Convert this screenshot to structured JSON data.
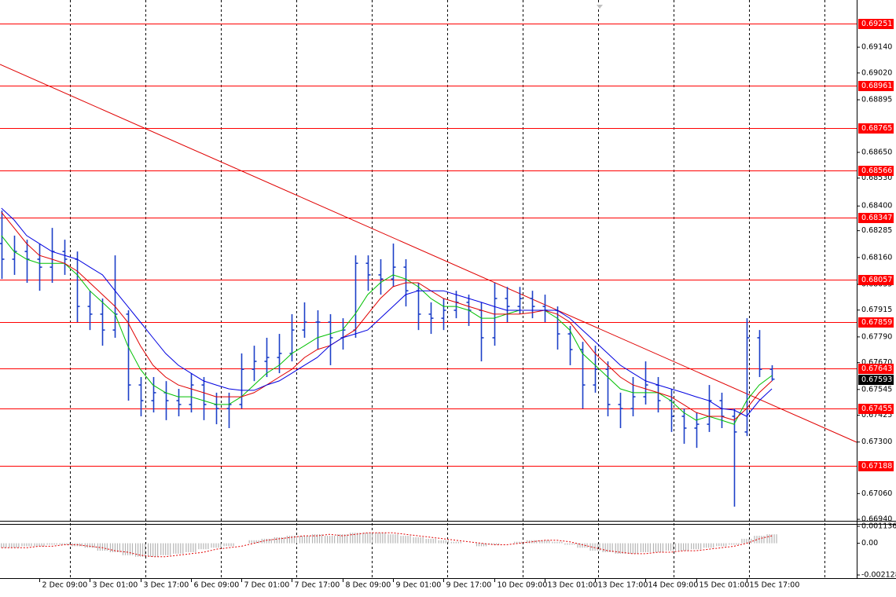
{
  "chart_data": {
    "type": "ohlc",
    "color": "#1c3fc8",
    "categories": [
      null,
      null,
      null,
      "2 Dec 09:00",
      null,
      null,
      null,
      "3 Dec 01:00",
      null,
      null,
      null,
      "3 Dec 17:00",
      null,
      null,
      null,
      "6 Dec 09:00",
      null,
      null,
      null,
      "7 Dec 01:00",
      null,
      null,
      null,
      "7 Dec 17:00",
      null,
      null,
      null,
      "8 Dec 09:00",
      null,
      null,
      null,
      "9 Dec 01:00",
      null,
      null,
      null,
      "9 Dec 17:00",
      null,
      null,
      null,
      "10 Dec 09:00",
      null,
      null,
      null,
      "13 Dec 01:00",
      null,
      null,
      null,
      "13 Dec 17:00",
      null,
      null,
      null,
      "14 Dec 09:00",
      null,
      null,
      null,
      "15 Dec 01:00",
      null,
      null,
      null,
      "15 Dec 17:00",
      null,
      null
    ],
    "open": [
      0.68225,
      0.68152,
      0.68188,
      0.68152,
      0.68115,
      0.68188,
      0.68152,
      0.67932,
      0.67896,
      0.67822,
      0.67896,
      0.67566,
      0.67493,
      0.6753,
      0.67493,
      0.67475,
      0.67566,
      0.67475,
      0.67456,
      0.67475,
      0.67639,
      0.67676,
      0.67694,
      0.67713,
      0.67822,
      0.67859,
      0.67859,
      0.67786,
      0.67822,
      0.68133,
      0.68079,
      0.6806,
      0.68115,
      0.68005,
      0.67896,
      0.67877,
      0.67914,
      0.67951,
      0.67914,
      0.67786,
      0.67969,
      0.67932,
      0.67969,
      0.67932,
      0.67914,
      0.67804,
      0.67731,
      0.67566,
      0.67639,
      0.67475,
      0.67456,
      0.67511,
      0.67566,
      0.67493,
      0.6742,
      0.67365,
      0.67383,
      0.67493,
      0.6742,
      0.67347,
      0.67786,
      0.67639
    ],
    "high": [
      0.68379,
      0.68262,
      0.68243,
      0.68225,
      0.68298,
      0.68243,
      0.68188,
      0.68005,
      0.67969,
      0.6817,
      0.67914,
      0.67603,
      0.67603,
      0.67584,
      0.67548,
      0.67621,
      0.67603,
      0.6753,
      0.6753,
      0.67713,
      0.67749,
      0.67786,
      0.67804,
      0.67896,
      0.67951,
      0.67914,
      0.67896,
      0.67877,
      0.6817,
      0.6817,
      0.68152,
      0.68225,
      0.68152,
      0.68042,
      0.67951,
      0.67969,
      0.68005,
      0.67987,
      0.67951,
      0.68042,
      0.68023,
      0.68023,
      0.68005,
      0.67987,
      0.67932,
      0.67841,
      0.67767,
      0.67749,
      0.67676,
      0.6753,
      0.67603,
      0.67676,
      0.67603,
      0.67548,
      0.67456,
      0.67438,
      0.67566,
      0.6753,
      0.67456,
      0.67877,
      0.67822,
      0.67658
    ],
    "low": [
      0.6806,
      0.68079,
      0.68042,
      0.68005,
      0.68042,
      0.68079,
      0.67859,
      0.67822,
      0.67749,
      0.67786,
      0.67493,
      0.6742,
      0.67438,
      0.67402,
      0.6742,
      0.67438,
      0.67402,
      0.67383,
      0.67365,
      0.67456,
      0.67584,
      0.67603,
      0.67621,
      0.67676,
      0.67786,
      0.67731,
      0.67658,
      0.67731,
      0.67786,
      0.68005,
      0.67987,
      0.68023,
      0.67932,
      0.67822,
      0.67804,
      0.67822,
      0.67877,
      0.67841,
      0.67676,
      0.67749,
      0.67859,
      0.67896,
      0.67877,
      0.67859,
      0.67731,
      0.67658,
      0.67456,
      0.6753,
      0.6742,
      0.67365,
      0.6742,
      0.67475,
      0.67438,
      0.67347,
      0.67292,
      0.67273,
      0.67347,
      0.67365,
      0.66999,
      0.67328,
      0.67603,
      0.67584
    ],
    "close": [
      0.68152,
      0.68188,
      0.68152,
      0.68115,
      0.68188,
      0.68152,
      0.67932,
      0.67896,
      0.67822,
      0.67896,
      0.67566,
      0.67493,
      0.6753,
      0.67493,
      0.67475,
      0.67566,
      0.67475,
      0.67456,
      0.67475,
      0.67639,
      0.67676,
      0.67694,
      0.67713,
      0.67822,
      0.67859,
      0.67859,
      0.67786,
      0.67822,
      0.68133,
      0.68079,
      0.6806,
      0.68115,
      0.68005,
      0.67896,
      0.67877,
      0.67914,
      0.67951,
      0.67914,
      0.67786,
      0.67969,
      0.67932,
      0.67969,
      0.67932,
      0.67914,
      0.67804,
      0.67731,
      0.67566,
      0.67639,
      0.67475,
      0.67456,
      0.67511,
      0.67566,
      0.67493,
      0.6742,
      0.67365,
      0.67383,
      0.67493,
      0.6742,
      0.67347,
      0.67786,
      0.67639,
      0.67593
    ],
    "moving_averages": [
      {
        "color": "#00c000",
        "values": [
          0.68262,
          0.68188,
          0.68152,
          0.68133,
          0.68133,
          0.68133,
          0.68079,
          0.68005,
          0.67951,
          0.67896,
          0.67749,
          0.67639,
          0.67566,
          0.6753,
          0.67511,
          0.67511,
          0.67493,
          0.67475,
          0.67475,
          0.67511,
          0.67566,
          0.67621,
          0.67658,
          0.67713,
          0.67749,
          0.67786,
          0.67804,
          0.67822,
          0.67896,
          0.67987,
          0.68042,
          0.68079,
          0.6806,
          0.68024,
          0.67969,
          0.67932,
          0.67932,
          0.67914,
          0.67877,
          0.67877,
          0.67896,
          0.67914,
          0.67914,
          0.67914,
          0.67877,
          0.67822,
          0.67713,
          0.67658,
          0.67603,
          0.67548,
          0.6753,
          0.6753,
          0.6753,
          0.67493,
          0.67438,
          0.67402,
          0.6742,
          0.67402,
          0.67383,
          0.67493,
          0.67566,
          0.6761
        ]
      },
      {
        "color": "#e00000",
        "values": [
          0.68371,
          0.68298,
          0.68225,
          0.6817,
          0.68152,
          0.68133,
          0.68097,
          0.68042,
          0.67987,
          0.67932,
          0.67859,
          0.67749,
          0.67658,
          0.67603,
          0.67566,
          0.67548,
          0.6753,
          0.67511,
          0.67511,
          0.67511,
          0.6753,
          0.67566,
          0.67603,
          0.67639,
          0.67694,
          0.67731,
          0.67749,
          0.67786,
          0.67822,
          0.67896,
          0.67969,
          0.68024,
          0.68042,
          0.68042,
          0.68005,
          0.67969,
          0.67951,
          0.67932,
          0.67914,
          0.67896,
          0.67896,
          0.67896,
          0.67903,
          0.67914,
          0.67896,
          0.67859,
          0.67786,
          0.67713,
          0.67658,
          0.67603,
          0.67566,
          0.67548,
          0.6753,
          0.67511,
          0.67475,
          0.67438,
          0.6742,
          0.6742,
          0.67402,
          0.67456,
          0.6753,
          0.67585
        ]
      },
      {
        "color": "#0000e0",
        "values": [
          0.6839,
          0.68335,
          0.68262,
          0.68225,
          0.68188,
          0.6817,
          0.68152,
          0.68115,
          0.68079,
          0.68005,
          0.67932,
          0.67859,
          0.67786,
          0.67713,
          0.67658,
          0.67621,
          0.67585,
          0.67566,
          0.67548,
          0.67541,
          0.67541,
          0.67566,
          0.67585,
          0.67621,
          0.67658,
          0.67694,
          0.67749,
          0.67786,
          0.67804,
          0.67822,
          0.67877,
          0.67932,
          0.67987,
          0.68005,
          0.68005,
          0.68005,
          0.67987,
          0.67969,
          0.67951,
          0.67932,
          0.67914,
          0.67914,
          0.67914,
          0.67914,
          0.67914,
          0.67877,
          0.67822,
          0.67768,
          0.67713,
          0.67658,
          0.67621,
          0.67585,
          0.67566,
          0.67548,
          0.6753,
          0.67511,
          0.67493,
          0.67456,
          0.67449,
          0.6742,
          0.67493,
          0.67548
        ]
      }
    ],
    "levels": {
      "color": "#ff0000",
      "values": [
        0.69251,
        0.68961,
        0.68765,
        0.68566,
        0.68347,
        0.68057,
        0.67859,
        0.67643,
        0.67455,
        0.67188
      ]
    },
    "last_price": 0.67593,
    "ylim": [
      0.66933,
      0.6936
    ],
    "yticks": [
      {
        "value": 0.6914,
        "label": "0.69140"
      },
      {
        "value": 0.6902,
        "label": "0.69020"
      },
      0.68895,
      {
        "value": 0.6865,
        "label": "0.68650"
      },
      {
        "value": 0.6853,
        "label": "0.68530"
      },
      {
        "value": 0.684,
        "label": "0.68400"
      },
      0.68285,
      {
        "value": 0.6816,
        "label": "0.68160"
      },
      0.68035,
      0.67915,
      {
        "value": 0.6779,
        "label": "0.67790"
      },
      {
        "value": 0.6767,
        "label": "0.67670"
      },
      0.67545,
      0.67425,
      {
        "value": 0.673,
        "label": "0.67300"
      },
      {
        "value": 0.6706,
        "label": "0.67060"
      },
      {
        "value": 0.6694,
        "label": "0.66940"
      }
    ],
    "grid": true,
    "oscillator": {
      "type": "histogram",
      "color": "#b4b4b4",
      "signal_color": "#e00000",
      "values": [
        -0.0003,
        -0.0003,
        -0.0002,
        -0.0002,
        -0.0001,
        -0.0001,
        -0.0002,
        -0.0003,
        -0.0005,
        -0.0006,
        -0.0008,
        -0.0009,
        -0.0009,
        -0.0008,
        -0.0007,
        -0.0006,
        -0.0004,
        -0.0003,
        -0.0002,
        0,
        0.0002,
        0.0003,
        0.0004,
        0.0005,
        0.0005,
        0.0006,
        0.0005,
        0.0006,
        0.0007,
        0.0007,
        0.0007,
        0.0006,
        0.0005,
        0.0004,
        0.0003,
        0.0002,
        0.0001,
        0,
        -0.0002,
        -0.0001,
        0,
        0.0001,
        0.0002,
        0.0002,
        0.0001,
        -0.0001,
        -0.0003,
        -0.0005,
        -0.0006,
        -0.0007,
        -0.0007,
        -0.0006,
        -0.0006,
        -0.0005,
        -0.0005,
        -0.0004,
        -0.0003,
        -0.0002,
        -0.0001,
        0.0003,
        0.0005,
        0.0006
      ],
      "signal": [
        -0.0003,
        -0.0003,
        -0.0003,
        -0.0002,
        -0.0002,
        -0.0001,
        -0.0001,
        -0.0002,
        -0.0003,
        -0.0005,
        -0.0006,
        -0.0008,
        -0.0009,
        -0.0009,
        -0.0008,
        -0.0007,
        -0.0006,
        -0.0004,
        -0.0003,
        -0.0002,
        0,
        0.0002,
        0.0003,
        0.0004,
        0.0005,
        0.0005,
        0.0006,
        0.0005,
        0.0006,
        0.0007,
        0.0007,
        0.0007,
        0.0006,
        0.0005,
        0.0004,
        0.0003,
        0.0002,
        0.0001,
        0,
        -0.0001,
        -0.0001,
        0,
        0.0001,
        0.0002,
        0.0002,
        0.0001,
        -0.0001,
        -0.0003,
        -0.0005,
        -0.0006,
        -0.0007,
        -0.0007,
        -0.0006,
        -0.0006,
        -0.0005,
        -0.0005,
        -0.0004,
        -0.0003,
        -0.0002,
        0,
        0.0003,
        0.0005
      ],
      "ylim": [
        -0.002128,
        0.001136
      ],
      "yticks": [
        0.001136,
        {
          "value": 0,
          "label": "0.00"
        },
        -0.002128
      ]
    }
  }
}
